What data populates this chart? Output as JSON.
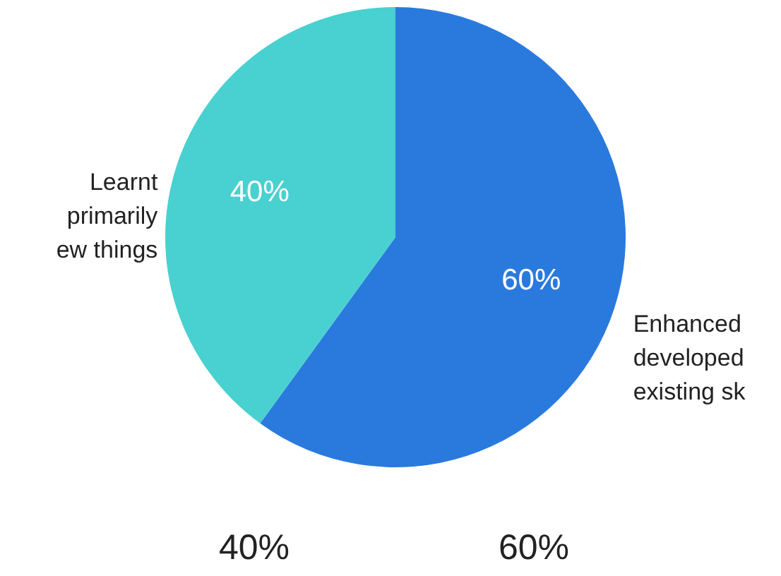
{
  "chart_data": {
    "type": "pie",
    "categories": [
      "Enhanced\ndeveloped\nexisting sk",
      "Learnt\nprimarily\new things"
    ],
    "values": [
      60,
      40
    ],
    "colors": [
      "#2a7ade",
      "#48d1d0"
    ],
    "value_labels": [
      "60%",
      "40%"
    ],
    "annotations": [
      "40%",
      "60%"
    ]
  }
}
